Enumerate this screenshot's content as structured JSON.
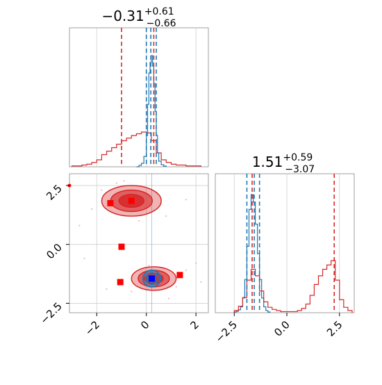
{
  "colors": {
    "red": "#d62728",
    "blue": "#1f77b4",
    "grid": "#cfcfcf",
    "marker_red": "#ff0000",
    "marker_blue": "#0000ff"
  },
  "chart_data": [
    {
      "type": "histogram",
      "panel": "marginal-x",
      "title": {
        "value": "−0.31",
        "sup": "+0.61",
        "sub": "−0.66"
      },
      "xlim": [
        -3.1,
        2.5
      ],
      "grid": true,
      "vlines_red": [
        -1.0,
        0.3
      ],
      "vlines_blue": [
        0.0,
        0.18,
        0.4
      ],
      "series": [
        {
          "color": "#d62728",
          "bins_x": [
            -3.0,
            -2.8,
            -2.6,
            -2.4,
            -2.2,
            -2.0,
            -1.8,
            -1.6,
            -1.4,
            -1.2,
            -1.0,
            -0.8,
            -0.6,
            -0.4,
            -0.2,
            0.0,
            0.2,
            0.4,
            0.6,
            0.8,
            1.0,
            1.2,
            1.4,
            1.6,
            1.8,
            2.0,
            2.2
          ],
          "counts": [
            1,
            1,
            2,
            3,
            5,
            8,
            14,
            18,
            22,
            26,
            30,
            33,
            36,
            38,
            40,
            39,
            30,
            16,
            8,
            5,
            3,
            2,
            2,
            1,
            1,
            1
          ]
        },
        {
          "color": "#1f77b4",
          "bins_x": [
            -0.4,
            -0.3,
            -0.2,
            -0.1,
            0.0,
            0.05,
            0.1,
            0.15,
            0.2,
            0.25,
            0.3,
            0.35,
            0.4,
            0.45,
            0.5,
            0.6,
            0.7,
            0.8
          ],
          "counts": [
            0,
            2,
            5,
            15,
            45,
            90,
            135,
            150,
            160,
            145,
            120,
            80,
            45,
            20,
            8,
            3,
            1
          ]
        }
      ]
    },
    {
      "type": "contour",
      "panel": "joint",
      "xlim": [
        -3.1,
        2.5
      ],
      "ylim": [
        -2.9,
        3.0
      ],
      "xticks": [
        "−2",
        "0",
        "2"
      ],
      "yticks": [
        "−2.5",
        "0.0",
        "2.5"
      ],
      "modes": [
        {
          "color": "#d62728",
          "center": [
            -0.6,
            1.85
          ],
          "spread": [
            1.2,
            0.65
          ]
        },
        {
          "color": "#d62728",
          "center": [
            0.3,
            -1.45
          ],
          "spread": [
            0.9,
            0.5
          ]
        },
        {
          "color": "#1f77b4",
          "center": [
            0.22,
            -1.45
          ],
          "spread": [
            0.35,
            0.35
          ]
        }
      ],
      "red_markers": [
        [
          -1.45,
          1.75
        ],
        [
          -0.6,
          1.85
        ],
        [
          -1.0,
          -0.1
        ],
        [
          -1.05,
          -1.6
        ],
        [
          1.35,
          -1.3
        ]
      ],
      "blue_marker": [
        0.22,
        -1.45
      ],
      "crosshair": {
        "x": [
          0.25
        ],
        "y": [
          2.5,
          0.0,
          -2.5
        ]
      }
    },
    {
      "type": "histogram",
      "panel": "marginal-y",
      "title": {
        "value": "1.51",
        "sup": "+0.59",
        "sub": "−3.07"
      },
      "xlim": [
        -3.4,
        3.2
      ],
      "xticks": [
        "−2.5",
        "0.0",
        "2.5"
      ],
      "grid": true,
      "vlines_red": [
        -1.65,
        2.25
      ],
      "vlines_blue": [
        -1.9,
        -1.55,
        -1.3
      ],
      "series": [
        {
          "color": "#1f77b4",
          "bins_x": [
            -2.5,
            -2.4,
            -2.3,
            -2.2,
            -2.1,
            -2.0,
            -1.9,
            -1.8,
            -1.7,
            -1.6,
            -1.5,
            -1.4,
            -1.3,
            -1.2,
            -1.1,
            -1.0,
            -0.9,
            -0.8
          ],
          "counts": [
            1,
            2,
            4,
            8,
            20,
            45,
            90,
            140,
            160,
            150,
            120,
            80,
            45,
            20,
            8,
            3,
            1
          ]
        },
        {
          "color": "#d62728",
          "bins_x": [
            -2.5,
            -2.3,
            -2.1,
            -1.9,
            -1.7,
            -1.5,
            -1.3,
            -1.1,
            -0.9,
            -0.7,
            -0.5,
            -0.3,
            -0.1,
            0.1,
            0.3,
            0.5,
            0.7,
            0.9,
            1.1,
            1.3,
            1.5,
            1.7,
            1.9,
            2.1,
            2.3,
            2.5,
            2.7,
            2.9,
            3.1
          ],
          "counts": [
            2,
            6,
            14,
            30,
            40,
            34,
            20,
            10,
            5,
            3,
            2,
            1,
            1,
            1,
            1,
            2,
            4,
            8,
            16,
            26,
            34,
            40,
            44,
            48,
            30,
            12,
            5,
            2
          ]
        }
      ]
    }
  ]
}
